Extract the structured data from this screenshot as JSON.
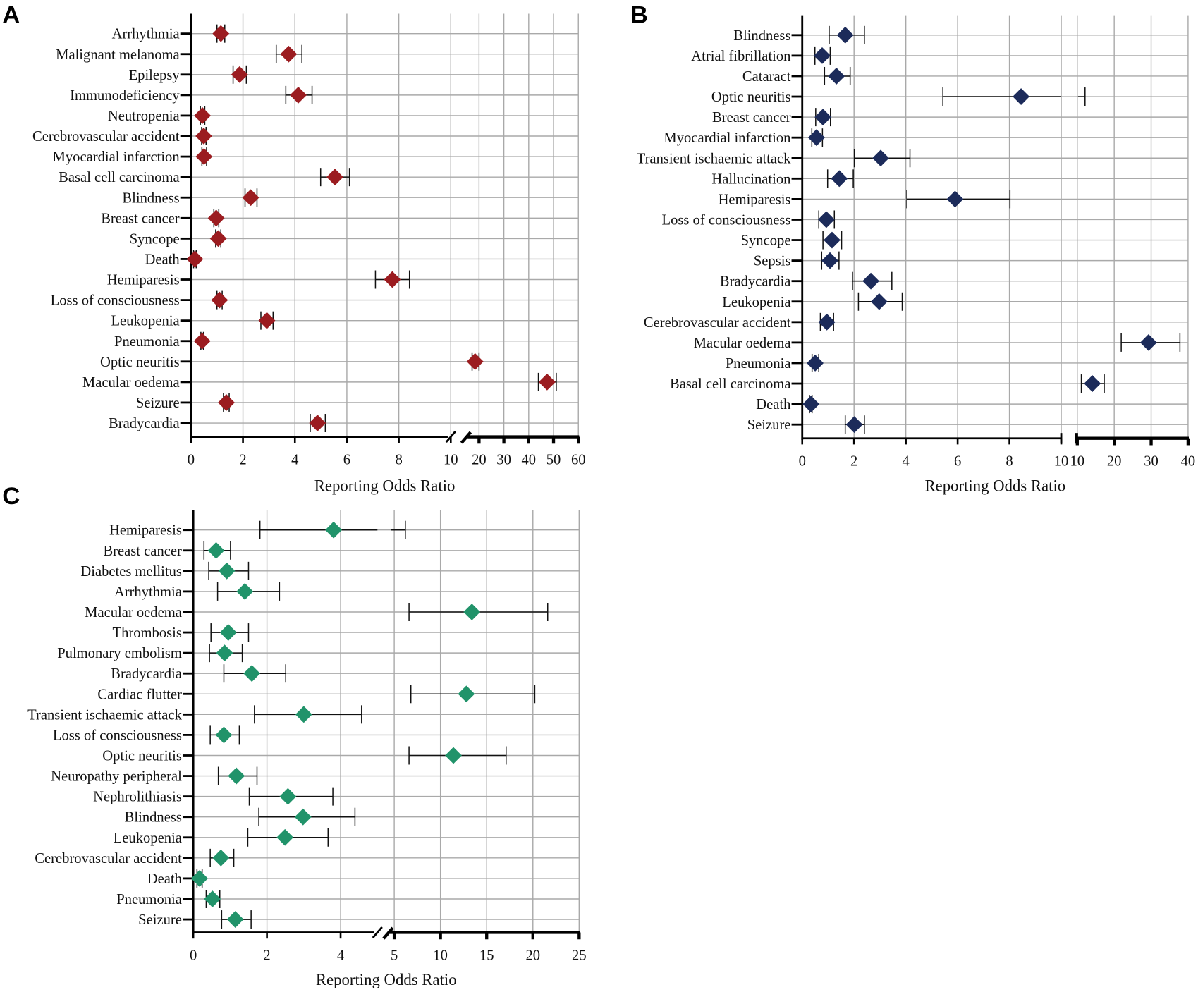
{
  "chart_data": [
    {
      "type": "scatter",
      "subtype": "forest-plot",
      "panel_label": "A",
      "xlabel": "Reporting Odds Ratio",
      "x_ticks_left": [
        0,
        2,
        4,
        6,
        8,
        10
      ],
      "x_ticks_right": [
        20,
        30,
        40,
        50,
        60
      ],
      "axis_break": true,
      "grid": true,
      "color": "#9b1c20",
      "rows": [
        {
          "label": "Arrhythmia",
          "ror": 1.15,
          "lo": 1.0,
          "hi": 1.3
        },
        {
          "label": "Malignant melanoma",
          "ror": 3.76,
          "lo": 3.28,
          "hi": 4.27
        },
        {
          "label": "Epilepsy",
          "ror": 1.87,
          "lo": 1.62,
          "hi": 2.13
        },
        {
          "label": "Immunodeficiency",
          "ror": 4.13,
          "lo": 3.65,
          "hi": 4.66
        },
        {
          "label": "Neutropenia",
          "ror": 0.44,
          "lo": 0.36,
          "hi": 0.53
        },
        {
          "label": "Cerebrovascular accident",
          "ror": 0.49,
          "lo": 0.41,
          "hi": 0.58
        },
        {
          "label": "Myocardial infarction",
          "ror": 0.5,
          "lo": 0.42,
          "hi": 0.6
        },
        {
          "label": "Basal cell carcinoma",
          "ror": 5.54,
          "lo": 4.99,
          "hi": 6.1
        },
        {
          "label": "Blindness",
          "ror": 2.3,
          "lo": 2.08,
          "hi": 2.54
        },
        {
          "label": "Breast cancer",
          "ror": 0.97,
          "lo": 0.88,
          "hi": 1.07
        },
        {
          "label": "Syncope",
          "ror": 1.05,
          "lo": 0.95,
          "hi": 1.15
        },
        {
          "label": "Death",
          "ror": 0.15,
          "lo": 0.1,
          "hi": 0.2
        },
        {
          "label": "Hemiparesis",
          "ror": 7.75,
          "lo": 7.1,
          "hi": 8.41
        },
        {
          "label": "Loss of consciousness",
          "ror": 1.1,
          "lo": 1.0,
          "hi": 1.2
        },
        {
          "label": "Leukopenia",
          "ror": 2.92,
          "lo": 2.69,
          "hi": 3.16
        },
        {
          "label": "Pneumonia",
          "ror": 0.43,
          "lo": 0.38,
          "hi": 0.48
        },
        {
          "label": "Optic neuritis",
          "ror": 18.4,
          "lo": 17.2,
          "hi": 20.0
        },
        {
          "label": "Macular oedema",
          "ror": 47.4,
          "lo": 43.9,
          "hi": 51.1
        },
        {
          "label": "Seizure",
          "ror": 1.36,
          "lo": 1.25,
          "hi": 1.47
        },
        {
          "label": "Bradycardia",
          "ror": 4.87,
          "lo": 4.59,
          "hi": 5.17
        }
      ]
    },
    {
      "type": "scatter",
      "subtype": "forest-plot",
      "panel_label": "B",
      "xlabel": "Reporting Odds Ratio",
      "x_ticks_left": [
        0,
        2,
        4,
        6,
        8,
        10
      ],
      "x_ticks_right": [
        10,
        20,
        30,
        40
      ],
      "axis_break": true,
      "grid": true,
      "color": "#1c2b5a",
      "rows": [
        {
          "label": "Blindness",
          "ror": 1.66,
          "lo": 1.04,
          "hi": 2.4
        },
        {
          "label": "Atrial fibrillation",
          "ror": 0.77,
          "lo": 0.49,
          "hi": 1.08
        },
        {
          "label": "Cataract",
          "ror": 1.32,
          "lo": 0.86,
          "hi": 1.85
        },
        {
          "label": "Optic neuritis",
          "ror": 8.45,
          "lo": 5.43,
          "hi": 12.1
        },
        {
          "label": "Breast cancer",
          "ror": 0.8,
          "lo": 0.52,
          "hi": 1.09
        },
        {
          "label": "Myocardial infarction",
          "ror": 0.55,
          "lo": 0.37,
          "hi": 0.78
        },
        {
          "label": "Transient ischaemic attack",
          "ror": 3.03,
          "lo": 2.01,
          "hi": 4.16
        },
        {
          "label": "Hallucination",
          "ror": 1.43,
          "lo": 0.98,
          "hi": 1.97
        },
        {
          "label": "Hemiparesis",
          "ror": 5.9,
          "lo": 4.04,
          "hi": 8.02
        },
        {
          "label": "Loss of consciousness",
          "ror": 0.93,
          "lo": 0.64,
          "hi": 1.24
        },
        {
          "label": "Syncope",
          "ror": 1.15,
          "lo": 0.8,
          "hi": 1.52
        },
        {
          "label": "Sepsis",
          "ror": 1.07,
          "lo": 0.75,
          "hi": 1.42
        },
        {
          "label": "Bradycardia",
          "ror": 2.65,
          "lo": 1.94,
          "hi": 3.46
        },
        {
          "label": "Leukopenia",
          "ror": 2.97,
          "lo": 2.17,
          "hi": 3.86
        },
        {
          "label": "Cerebrovascular accident",
          "ror": 0.95,
          "lo": 0.7,
          "hi": 1.21
        },
        {
          "label": "Macular oedema",
          "ror": 29.3,
          "lo": 21.9,
          "hi": 37.8
        },
        {
          "label": "Pneumonia",
          "ror": 0.5,
          "lo": 0.38,
          "hi": 0.64
        },
        {
          "label": "Basal cell carcinoma",
          "ror": 14.1,
          "lo": 11.1,
          "hi": 17.3
        },
        {
          "label": "Death",
          "ror": 0.34,
          "lo": 0.28,
          "hi": 0.38
        },
        {
          "label": "Seizure",
          "ror": 2.01,
          "lo": 1.66,
          "hi": 2.4
        }
      ]
    },
    {
      "type": "scatter",
      "subtype": "forest-plot",
      "panel_label": "C",
      "xlabel": "Reporting Odds Ratio",
      "x_ticks_left": [
        0,
        2,
        4
      ],
      "x_ticks_right": [
        5,
        10,
        15,
        20,
        25
      ],
      "axis_break": true,
      "grid": true,
      "color": "#21936a",
      "rows": [
        {
          "label": "Hemiparesis",
          "ror": 3.81,
          "lo": 1.81,
          "hi": 6.2
        },
        {
          "label": "Breast cancer",
          "ror": 0.62,
          "lo": 0.29,
          "hi": 1.01
        },
        {
          "label": "Diabetes mellitus",
          "ror": 0.91,
          "lo": 0.42,
          "hi": 1.5
        },
        {
          "label": "Arrhythmia",
          "ror": 1.4,
          "lo": 0.66,
          "hi": 2.34
        },
        {
          "label": "Macular oedema",
          "ror": 13.4,
          "lo": 6.6,
          "hi": 21.6
        },
        {
          "label": "Thrombosis",
          "ror": 0.95,
          "lo": 0.48,
          "hi": 1.5
        },
        {
          "label": "Pulmonary embolism",
          "ror": 0.85,
          "lo": 0.44,
          "hi": 1.33
        },
        {
          "label": "Bradycardia",
          "ror": 1.59,
          "lo": 0.83,
          "hi": 2.51
        },
        {
          "label": "Cardiac flutter",
          "ror": 12.8,
          "lo": 6.8,
          "hi": 20.2
        },
        {
          "label": "Transient ischaemic attack",
          "ror": 3.0,
          "lo": 1.66,
          "hi": 4.57
        },
        {
          "label": "Loss of consciousness",
          "ror": 0.83,
          "lo": 0.46,
          "hi": 1.25
        },
        {
          "label": "Optic neuritis",
          "ror": 11.4,
          "lo": 6.6,
          "hi": 17.1
        },
        {
          "label": "Neuropathy peripheral",
          "ror": 1.17,
          "lo": 0.68,
          "hi": 1.73
        },
        {
          "label": "Nephrolithiasis",
          "ror": 2.57,
          "lo": 1.52,
          "hi": 3.79
        },
        {
          "label": "Blindness",
          "ror": 2.98,
          "lo": 1.78,
          "hi": 4.39
        },
        {
          "label": "Leukopenia",
          "ror": 2.49,
          "lo": 1.48,
          "hi": 3.66
        },
        {
          "label": "Cerebrovascular accident",
          "ror": 0.75,
          "lo": 0.46,
          "hi": 1.1
        },
        {
          "label": "Death",
          "ror": 0.17,
          "lo": 0.1,
          "hi": 0.24
        },
        {
          "label": "Pneumonia",
          "ror": 0.52,
          "lo": 0.35,
          "hi": 0.72
        },
        {
          "label": "Seizure",
          "ror": 1.14,
          "lo": 0.77,
          "hi": 1.57
        }
      ]
    }
  ]
}
